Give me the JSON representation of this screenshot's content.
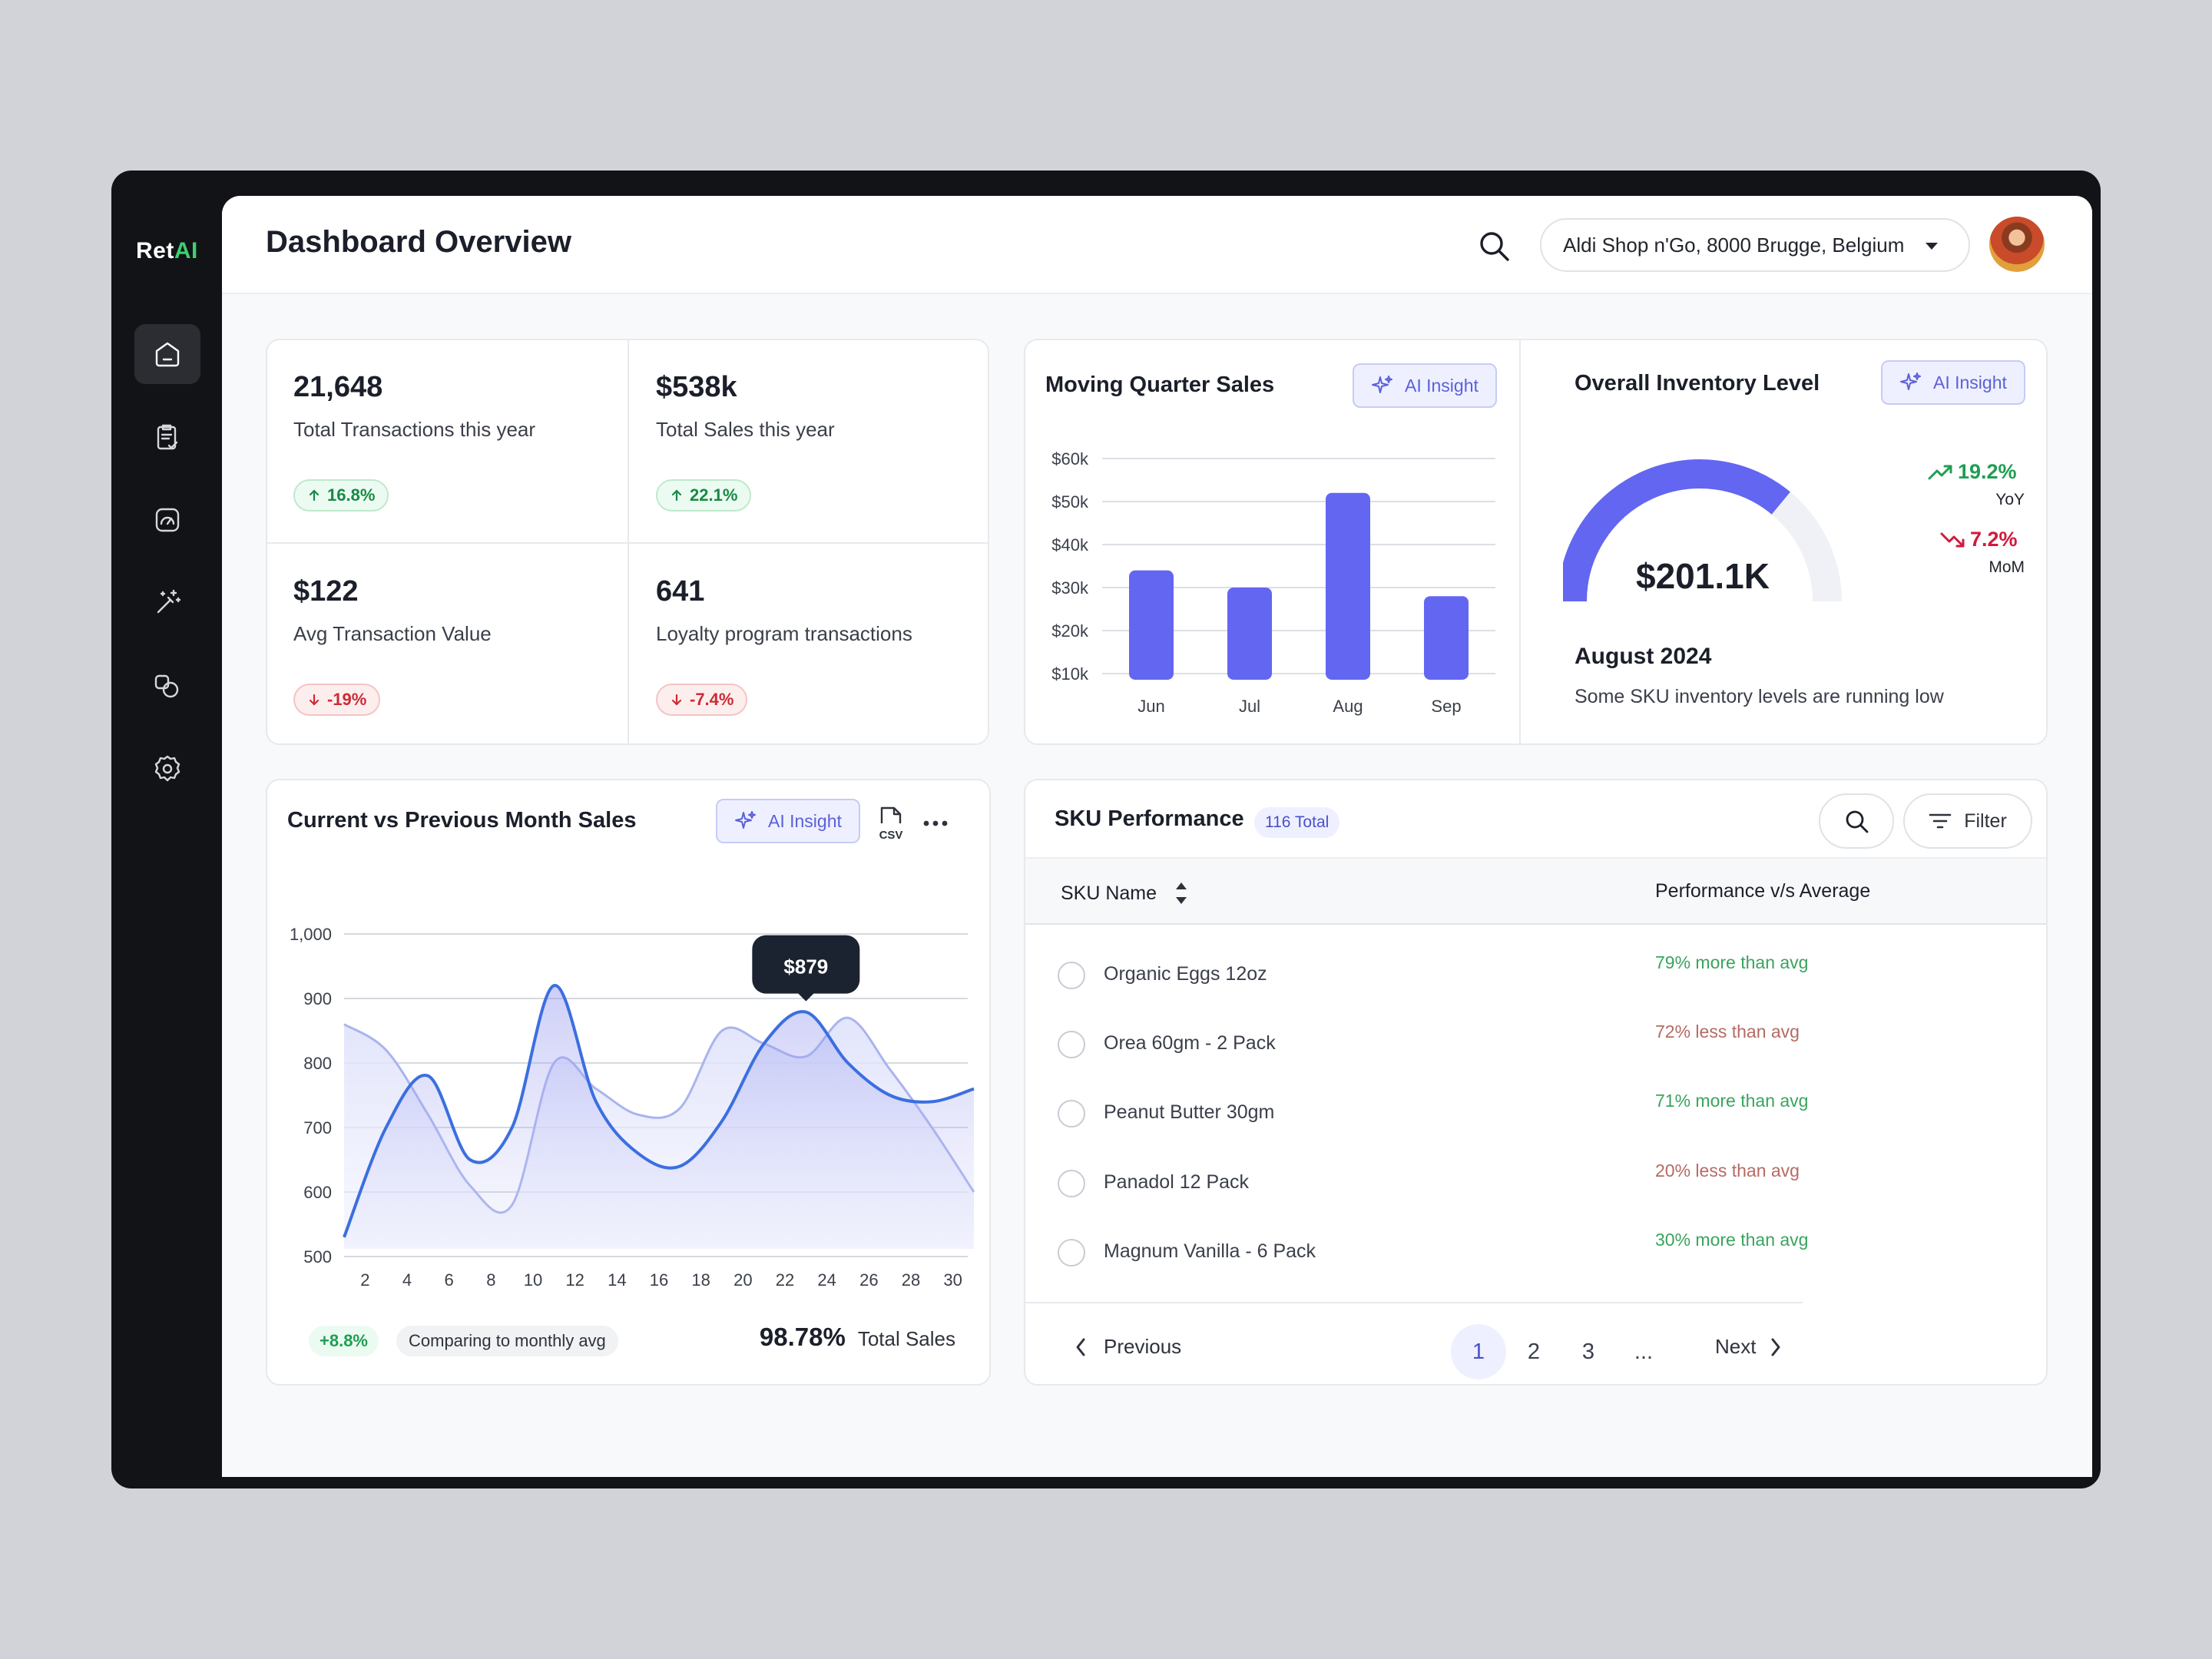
{
  "brand": {
    "prefix": "Ret",
    "accent": "AI"
  },
  "sidebar": {
    "items": [
      {
        "name": "home",
        "active": true
      },
      {
        "name": "reports",
        "active": false
      },
      {
        "name": "analytics",
        "active": false
      },
      {
        "name": "ai-tools",
        "active": false
      },
      {
        "name": "products",
        "active": false
      },
      {
        "name": "settings",
        "active": false
      }
    ]
  },
  "header": {
    "title": "Dashboard Overview",
    "store": "Aldi Shop n'Go, 8000 Brugge, Belgium"
  },
  "kpis": [
    {
      "value": "21,648",
      "label": "Total Transactions this year",
      "change": "16.8%",
      "direction": "up"
    },
    {
      "value": "$538k",
      "label": "Total Sales this year",
      "change": "22.1%",
      "direction": "up"
    },
    {
      "value": "$122",
      "label": "Avg Transaction Value",
      "change": "-19%",
      "direction": "down"
    },
    {
      "value": "641",
      "label": "Loyalty program transactions",
      "change": "-7.4%",
      "direction": "down"
    }
  ],
  "ai_insight_label": "AI Insight",
  "quarter": {
    "title": "Moving Quarter Sales",
    "chart_data": {
      "type": "bar",
      "categories": [
        "Jun",
        "Jul",
        "Aug",
        "Sep"
      ],
      "values": [
        34,
        30,
        52,
        28
      ],
      "ylim": [
        10,
        60
      ],
      "yticks": [
        60,
        50,
        40,
        30,
        20,
        10
      ],
      "ytick_labels": [
        "$60k",
        "$50k",
        "$40k",
        "$30k",
        "$20k",
        "$10k"
      ],
      "grid": true,
      "color": "#6366f1"
    }
  },
  "inventory": {
    "title": "Overall Inventory Level",
    "value": "$201.1K",
    "gauge_fraction": 0.72,
    "yoy": {
      "value": "19.2%",
      "label": "YoY"
    },
    "mom": {
      "value": "7.2%",
      "label": "MoM"
    },
    "period": "August 2024",
    "note": "Some SKU inventory levels are running low"
  },
  "monthly": {
    "title": "Current vs Previous Month Sales",
    "csv_label": "CSV",
    "tooltip": "$879",
    "chart_data": {
      "type": "line",
      "x": [
        1,
        3,
        5,
        7,
        9,
        11,
        13,
        15,
        17,
        19,
        21,
        23,
        25,
        27,
        29,
        31
      ],
      "xticks": [
        2,
        4,
        6,
        8,
        10,
        12,
        14,
        16,
        18,
        20,
        22,
        24,
        26,
        28,
        30
      ],
      "ylim": [
        500,
        1000
      ],
      "yticks": [
        1000,
        900,
        800,
        700,
        600,
        500
      ],
      "ytick_labels": [
        "1,000",
        "900",
        "800",
        "700",
        "600",
        "500"
      ],
      "series": [
        {
          "values": [
            530,
            700,
            780,
            650,
            700,
            920,
            740,
            660,
            640,
            710,
            830,
            879,
            800,
            750,
            740,
            760
          ],
          "color": "#3b6fe0"
        },
        {
          "values": [
            860,
            820,
            720,
            610,
            580,
            800,
            760,
            720,
            730,
            850,
            830,
            810,
            870,
            790,
            700,
            600
          ],
          "color": "#a9b4ee"
        }
      ],
      "highlight_x": 23
    },
    "footer": {
      "badge": "+8.8%",
      "compare": "Comparing to monthly avg",
      "total_value": "98.78%",
      "total_label": "Total Sales"
    }
  },
  "sku": {
    "title": "SKU Performance",
    "count": "116 Total",
    "filter_label": "Filter",
    "columns": [
      "SKU Name",
      "Performance v/s Average"
    ],
    "rows": [
      {
        "name": "Organic Eggs 12oz",
        "perf": "79% more than avg",
        "trend": "more"
      },
      {
        "name": "Orea 60gm - 2 Pack",
        "perf": "72% less than avg",
        "trend": "less"
      },
      {
        "name": "Peanut Butter 30gm",
        "perf": "71% more than avg",
        "trend": "more"
      },
      {
        "name": "Panadol 12 Pack",
        "perf": "20% less than avg",
        "trend": "less"
      },
      {
        "name": "Magnum Vanilla - 6 Pack",
        "perf": "30% more than avg",
        "trend": "more"
      }
    ],
    "pagination": {
      "prev": "Previous",
      "next": "Next",
      "pages": [
        "1",
        "2",
        "3",
        "..."
      ],
      "current": "1"
    }
  }
}
